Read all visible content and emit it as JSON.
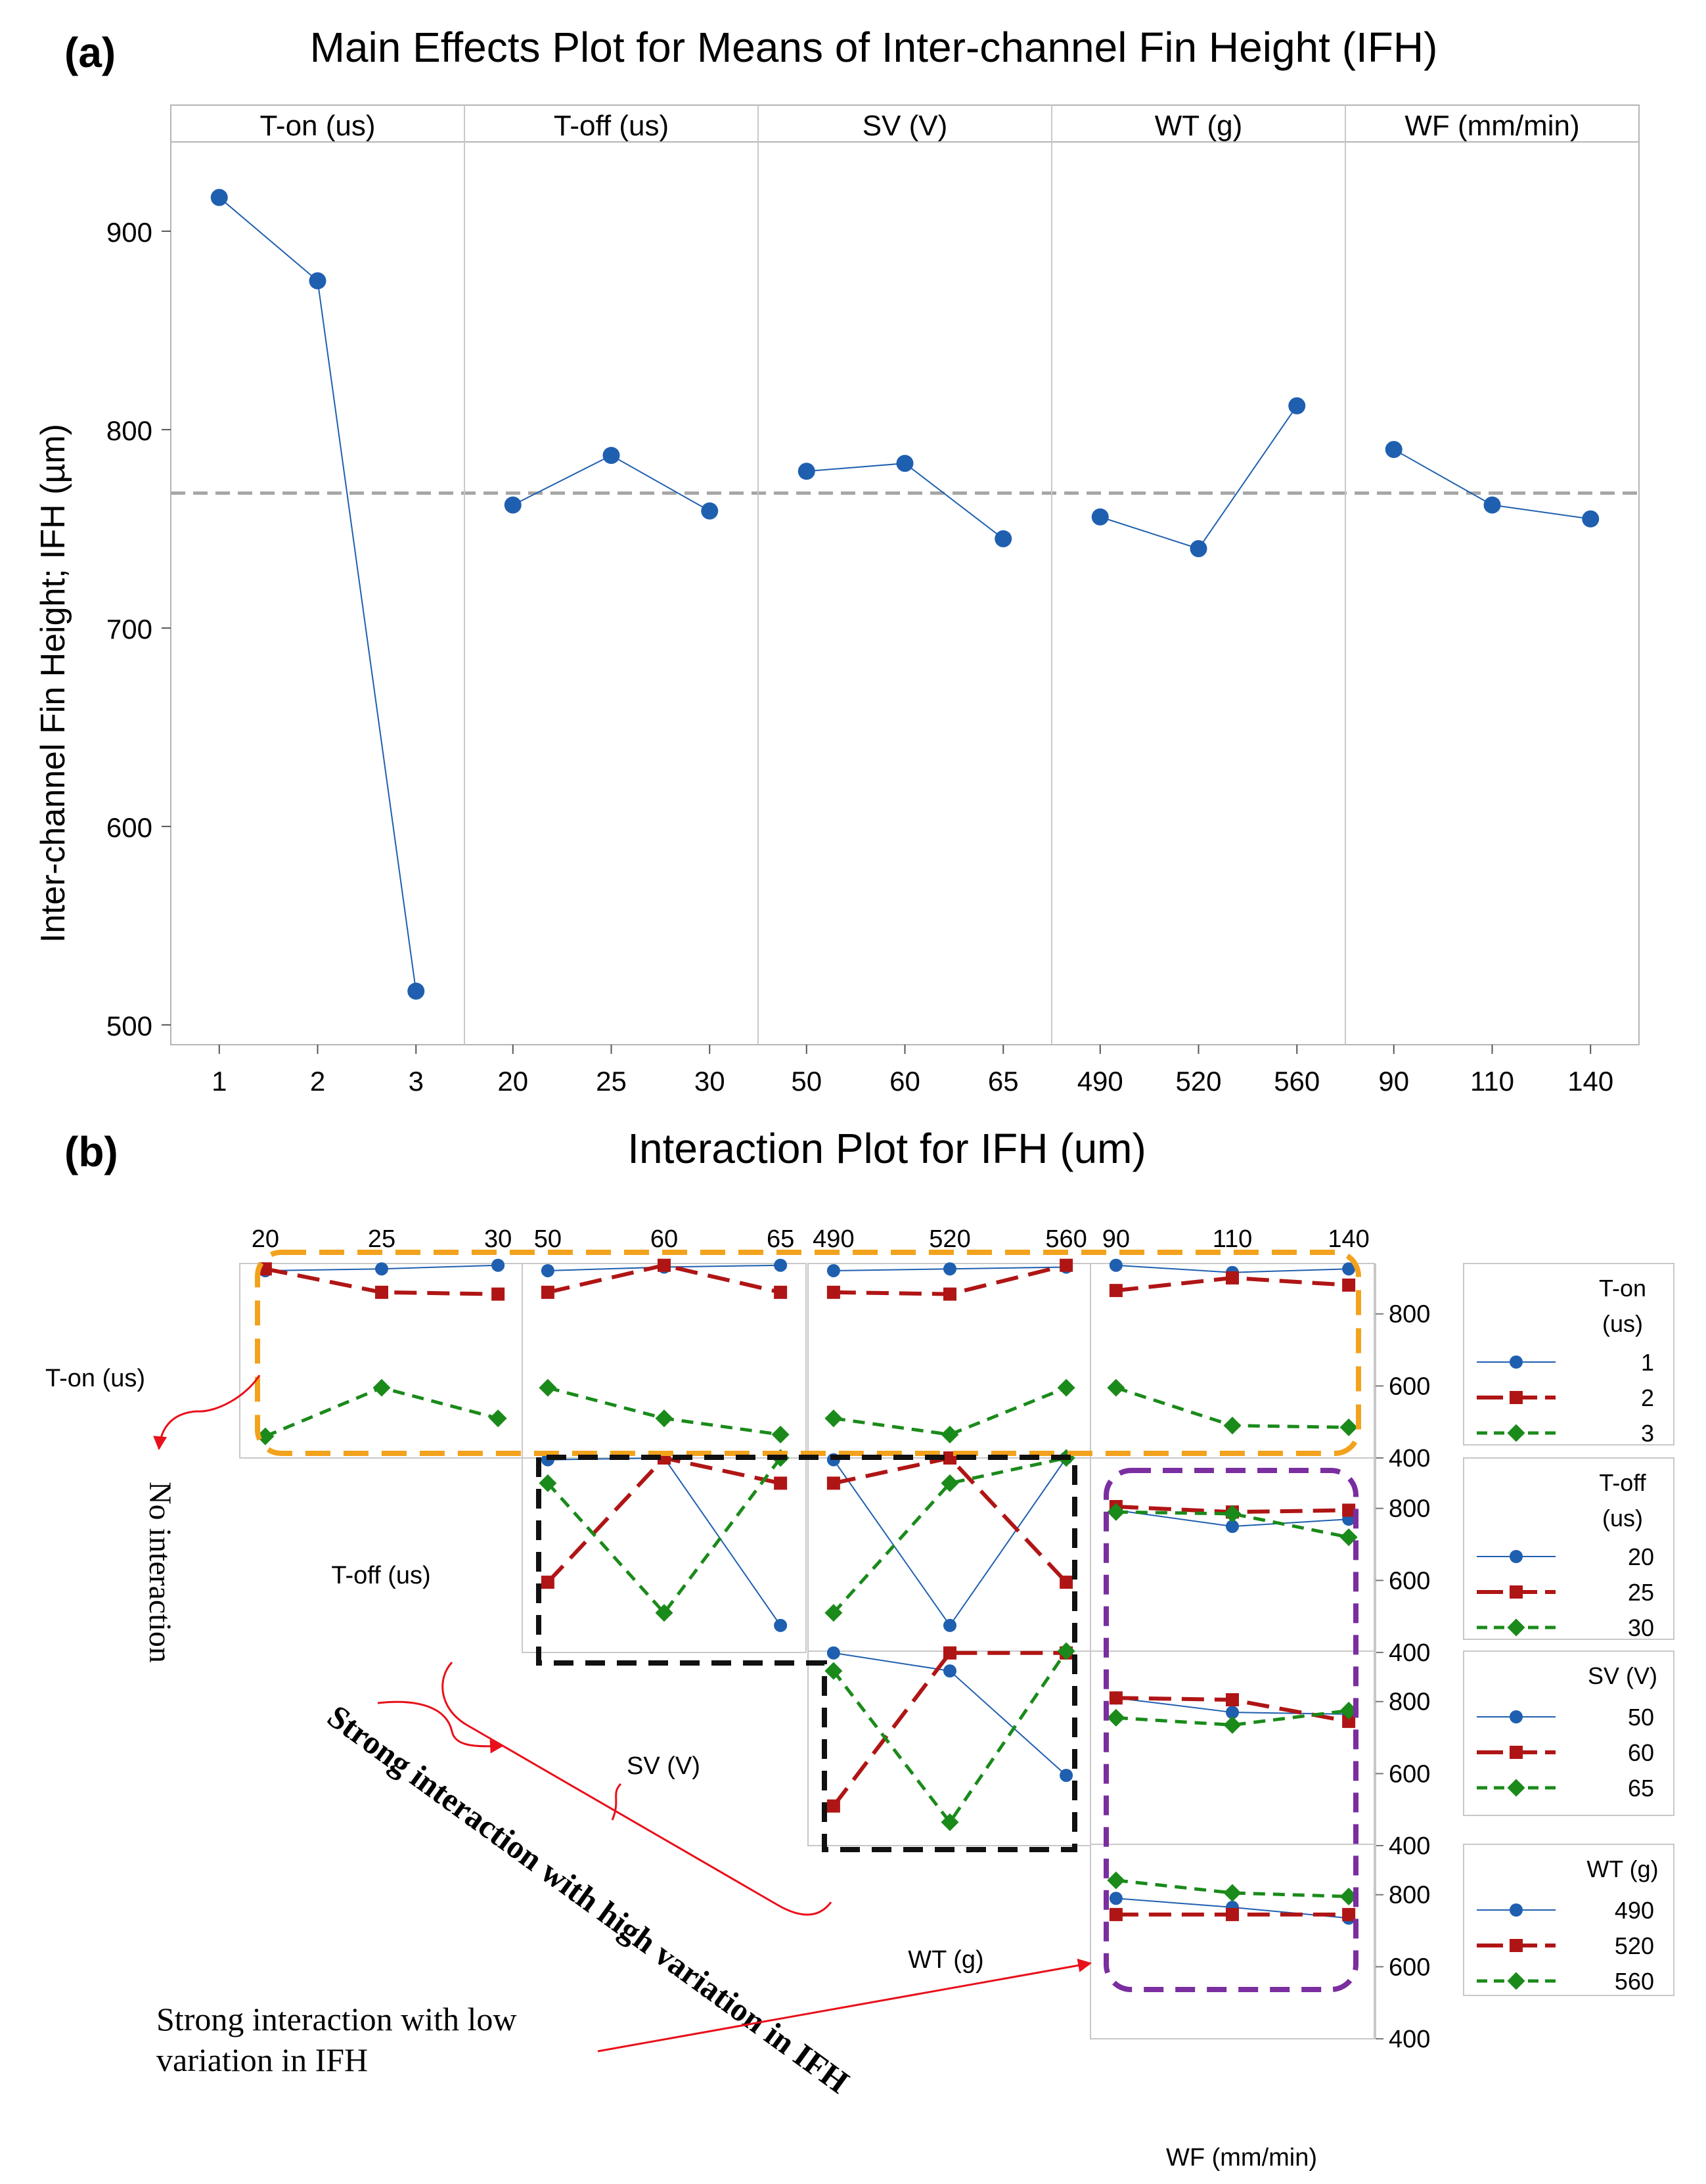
{
  "colors": {
    "series1": "#1f5fb0",
    "series2": "#b01515",
    "series3": "#1a8a1a",
    "ref": "#a6a6a6",
    "annot": "#e8101a",
    "box_orange": "#f2a21c",
    "box_black": "#111111",
    "box_purple": "#7a2ea0"
  },
  "panel_a": {
    "label": "(a)",
    "title": "Main Effects Plot for Means of Inter-channel Fin Height (IFH)"
  },
  "panel_b": {
    "label": "(b)",
    "title": "Interaction Plot for IFH (um)"
  },
  "chart_data": [
    {
      "type": "line",
      "title": "Main Effects Plot for Means of Inter-channel Fin Height (IFH)",
      "ylabel": "Inter-channel Fin Height; IFH (µm)",
      "ylim": [
        490,
        945
      ],
      "yticks": [
        500,
        600,
        700,
        800,
        900
      ],
      "reference_mean": 768,
      "factors": [
        {
          "name": "T-on (us)",
          "levels": [
            "1",
            "2",
            "3"
          ],
          "values": [
            917,
            875,
            517
          ]
        },
        {
          "name": "T-off (us)",
          "levels": [
            "20",
            "25",
            "30"
          ],
          "values": [
            762,
            787,
            759
          ]
        },
        {
          "name": "SV (V)",
          "levels": [
            "50",
            "60",
            "65"
          ],
          "values": [
            779,
            783,
            745
          ]
        },
        {
          "name": "WT (g)",
          "levels": [
            "490",
            "520",
            "560"
          ],
          "values": [
            756,
            740,
            812
          ]
        },
        {
          "name": "WF (mm/min)",
          "levels": [
            "90",
            "110",
            "140"
          ],
          "values": [
            790,
            762,
            755
          ]
        }
      ]
    },
    {
      "type": "line",
      "title": "Interaction Plot for IFH (um)",
      "yticks": [
        "400",
        "600",
        "800"
      ],
      "ylim": [
        400,
        940
      ],
      "row_factors": [
        {
          "name": "T-on (us)",
          "legend_title": [
            "T-on",
            "(us)"
          ],
          "levels": [
            "1",
            "2",
            "3"
          ]
        },
        {
          "name": "T-off (us)",
          "legend_title": [
            "T-off",
            "(us)"
          ],
          "levels": [
            "20",
            "25",
            "30"
          ]
        },
        {
          "name": "SV (V)",
          "legend_title": [
            "SV (V)"
          ],
          "levels": [
            "50",
            "60",
            "65"
          ]
        },
        {
          "name": "WT (g)",
          "legend_title": [
            "WT (g)"
          ],
          "levels": [
            "490",
            "520",
            "560"
          ]
        }
      ],
      "col_factors": [
        {
          "name": "T-off (us)",
          "levels": [
            "20",
            "25",
            "30"
          ]
        },
        {
          "name": "SV (V)",
          "levels": [
            "50",
            "60",
            "65"
          ]
        },
        {
          "name": "WT (g)",
          "levels": [
            "490",
            "520",
            "560"
          ]
        },
        {
          "name": "WF (mm/min)",
          "levels": [
            "90",
            "110",
            "140"
          ]
        }
      ],
      "cells": [
        {
          "row": 0,
          "col": 0,
          "series": [
            [
              920,
              925,
              935
            ],
            [
              925,
              860,
              855
            ],
            [
              460,
              595,
              510
            ]
          ]
        },
        {
          "row": 0,
          "col": 1,
          "series": [
            [
              920,
              930,
              935
            ],
            [
              860,
              935,
              860
            ],
            [
              595,
              510,
              465
            ]
          ]
        },
        {
          "row": 0,
          "col": 2,
          "series": [
            [
              920,
              925,
              930
            ],
            [
              860,
              855,
              935
            ],
            [
              510,
              465,
              595
            ]
          ]
        },
        {
          "row": 0,
          "col": 3,
          "series": [
            [
              935,
              915,
              925
            ],
            [
              865,
              900,
              880
            ],
            [
              595,
              490,
              485
            ]
          ]
        },
        {
          "row": 1,
          "col": 1,
          "series": [
            [
              935,
              940,
              475
            ],
            [
              595,
              940,
              870
            ],
            [
              870,
              510,
              940
            ]
          ]
        },
        {
          "row": 1,
          "col": 2,
          "series": [
            [
              935,
              475,
              940
            ],
            [
              870,
              940,
              595
            ],
            [
              510,
              870,
              940
            ]
          ]
        },
        {
          "row": 1,
          "col": 3,
          "series": [
            [
              795,
              750,
              770
            ],
            [
              805,
              790,
              795
            ],
            [
              790,
              785,
              720
            ]
          ]
        },
        {
          "row": 2,
          "col": 2,
          "series": [
            [
              935,
              885,
              595
            ],
            [
              510,
              935,
              935
            ],
            [
              885,
              465,
              940
            ]
          ]
        },
        {
          "row": 2,
          "col": 3,
          "series": [
            [
              810,
              770,
              765
            ],
            [
              810,
              805,
              745
            ],
            [
              755,
              735,
              775
            ]
          ]
        },
        {
          "row": 3,
          "col": 3,
          "series": [
            [
              790,
              765,
              735
            ],
            [
              745,
              745,
              745
            ],
            [
              840,
              805,
              795
            ]
          ]
        }
      ],
      "annotations": {
        "no_interaction": "No interaction",
        "strong_high": "Strong interaction with high variation in IFH",
        "strong_low": "Strong interaction with low variation in IFH"
      }
    }
  ]
}
